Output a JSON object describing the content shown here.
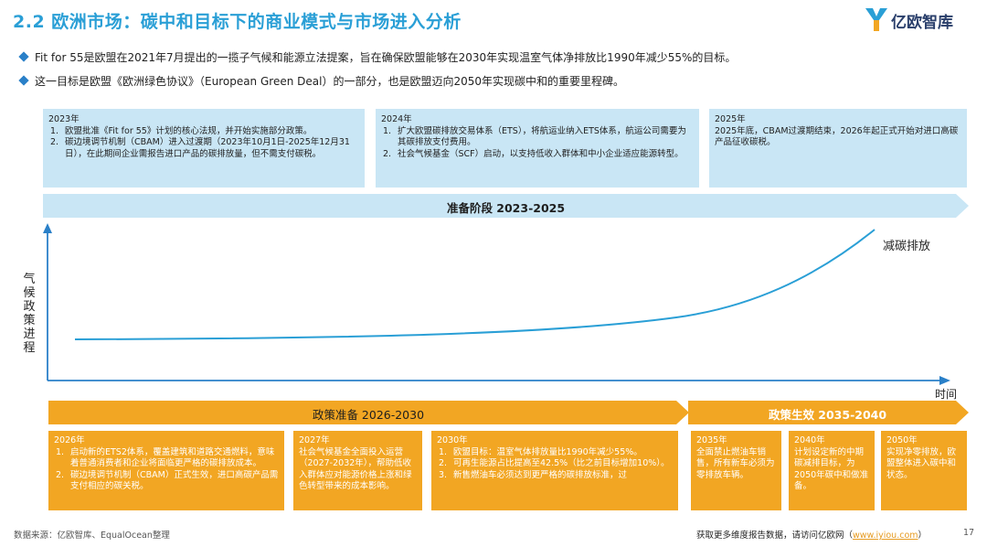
{
  "header": {
    "title": "2.2 欧洲市场：碳中和目标下的商业模式与市场进入分析",
    "logo_text": "亿欧智库"
  },
  "bullets": [
    "Fit for 55是欧盟在2021年7月提出的一揽子气候和能源立法提案，旨在确保欧盟能够在2030年实现温室气体净排放比1990年减少55%的目标。",
    "这一目标是欧盟《欧洲绿色协议》（European Green Deal）的一部分，也是欧盟迈向2050年实现碳中和的重要里程碑。"
  ],
  "top_boxes": [
    {
      "year": "2023年",
      "items": [
        {
          "n": "1.",
          "text": "欧盟批准《Fit for 55》计划的核心法规，并开始实施部分政策。"
        },
        {
          "n": "2.",
          "text": "碳边境调节机制（CBAM）进入过渡期（2023年10月1日-2025年12月31日），在此期间企业需报告进口产品的碳排放量，但不需支付碳税。"
        }
      ]
    },
    {
      "year": "2024年",
      "items": [
        {
          "n": "1.",
          "text": "扩大欧盟碳排放交易体系（ETS），将航运业纳入ETS体系，航运公司需要为其碳排放支付费用。"
        },
        {
          "n": "2.",
          "text": "社会气候基金（SCF）启动，以支持低收入群体和中小企业适应能源转型。"
        }
      ]
    },
    {
      "year": "2025年",
      "text": "2025年底，CBAM过渡期结束，2026年起正式开始对进口高碳产品征收碳税。"
    }
  ],
  "phases": {
    "prep": "准备阶段 2023-2025",
    "policy_prep": "政策准备 2026-2030",
    "policy_effect": "政策生效 2035-2040"
  },
  "chart": {
    "ylabel": "气候政策进程",
    "xlabel": "时间",
    "curve_label": "减碳排放"
  },
  "bottom_boxes": [
    {
      "year": "2026年",
      "items": [
        {
          "n": "1.",
          "text": "启动新的ETS2体系，覆盖建筑和道路交通燃料，意味着普通消费者和企业将面临更严格的碳排放成本。"
        },
        {
          "n": "2.",
          "text": "碳边境调节机制（CBAM）正式生效，进口高碳产品需支付相应的碳关税。"
        }
      ]
    },
    {
      "year": "2027年",
      "text": "社会气候基金全面投入运营（2027-2032年），帮助低收入群体应对能源价格上涨和绿色转型带来的成本影响。"
    },
    {
      "year": "2030年",
      "items": [
        {
          "n": "1.",
          "text": "欧盟目标：温室气体排放量比1990年减少55%。"
        },
        {
          "n": "2.",
          "text": "可再生能源占比提高至42.5%（比之前目标增加10%）。"
        },
        {
          "n": "3.",
          "text": "新售燃油车必须达到更严格的碳排放标准，过"
        }
      ]
    },
    {
      "year": "2035年",
      "text": "全面禁止燃油车销售，所有新车必须为零排放车辆。"
    },
    {
      "year": "2040年",
      "text": "计划设定新的中期碳减排目标，为2050年碳中和做准备。"
    },
    {
      "year": "2050年",
      "text": "实现净零排放，欧盟整体进入碳中和状态。"
    }
  ],
  "footer": {
    "source": "数据来源：亿欧智库、EqualOcean整理",
    "more": "获取更多维度报告数据，请访问亿欧网（",
    "link": "www.iyiou.com",
    "close": "）",
    "page": "17"
  },
  "colors": {
    "accent_blue": "#2a9fd6",
    "light_blue": "#c9e6f5",
    "orange": "#f2a623"
  }
}
